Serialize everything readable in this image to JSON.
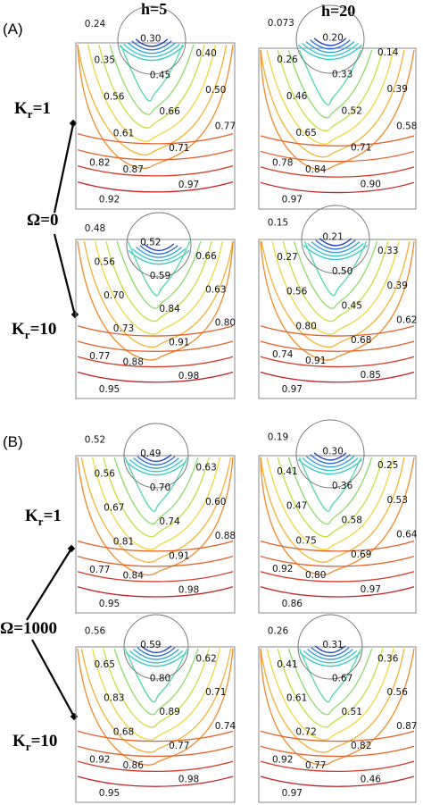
{
  "section_labels": {
    "a": "(A)",
    "b": "(B)"
  },
  "columns": {
    "left": "h=5",
    "right": "h=20"
  },
  "groups": [
    {
      "omega": "Ω=0",
      "rows": [
        {
          "k": "1"
        },
        {
          "k": "10"
        }
      ]
    },
    {
      "omega": "Ω=1000",
      "rows": [
        {
          "k": "1"
        },
        {
          "k": "10"
        }
      ]
    }
  ],
  "kr_prefix": "K",
  "kr_sub": "r",
  "panels": {
    "A_k1_h5": [
      "0.24",
      "0.30",
      "0.40",
      "0.35",
      "0.45",
      "0.50",
      "0.56",
      "0.66",
      "0.77",
      "0.61",
      "0.71",
      "0.82",
      "0.87",
      "0.97",
      "0.92"
    ],
    "A_k1_h20": [
      "0.073",
      "0.20",
      "0.14",
      "0.26",
      "0.33",
      "0.39",
      "0.46",
      "0.52",
      "0.58",
      "0.65",
      "0.71",
      "0.78",
      "0.84",
      "0.90",
      "0.97"
    ],
    "A_k10_h5": [
      "0.48",
      "0.52",
      "0.66",
      "0.56",
      "0.59",
      "0.63",
      "0.70",
      "0.84",
      "0.80",
      "0.73",
      "0.91",
      "0.77",
      "0.88",
      "0.98",
      "0.95"
    ],
    "A_k10_h20": [
      "0.15",
      "0.21",
      "0.33",
      "0.27",
      "0.50",
      "0.39",
      "0.56",
      "0.45",
      "0.62",
      "0.80",
      "0.68",
      "0.74",
      "0.91",
      "0.85",
      "0.97"
    ],
    "B_k1_h5": [
      "0.52",
      "0.49",
      "0.63",
      "0.56",
      "0.70",
      "0.60",
      "0.67",
      "0.74",
      "0.88",
      "0.81",
      "0.91",
      "0.77",
      "0.84",
      "0.98",
      "0.95"
    ],
    "B_k1_h20": [
      "0.19",
      "0.30",
      "0.25",
      "0.41",
      "0.36",
      "0.53",
      "0.47",
      "0.58",
      "0.64",
      "0.75",
      "0.69",
      "0.92",
      "0.80",
      "0.97",
      "0.86"
    ],
    "B_k10_h5": [
      "0.56",
      "0.59",
      "0.62",
      "0.65",
      "0.80",
      "0.71",
      "0.83",
      "0.89",
      "0.74",
      "0.68",
      "0.77",
      "0.92",
      "0.86",
      "0.98",
      "0.95"
    ],
    "B_k10_h20": [
      "0.26",
      "0.31",
      "0.36",
      "0.41",
      "0.67",
      "0.56",
      "0.61",
      "0.51",
      "0.87",
      "0.72",
      "0.82",
      "0.92",
      "0.77",
      "0.46",
      "0.97"
    ]
  },
  "colors": {
    "levels": [
      "#1a237e",
      "#1f3fbf",
      "#2a6fd8",
      "#2f9fe0",
      "#36c7d0",
      "#4fd9a8",
      "#8edc6a",
      "#c8dd3f",
      "#efd63a",
      "#f3b232",
      "#ef8a2c",
      "#e5602a",
      "#d63a26",
      "#c51f22",
      "#b01818"
    ],
    "frame": "#888888",
    "cylinder": "#777777"
  }
}
